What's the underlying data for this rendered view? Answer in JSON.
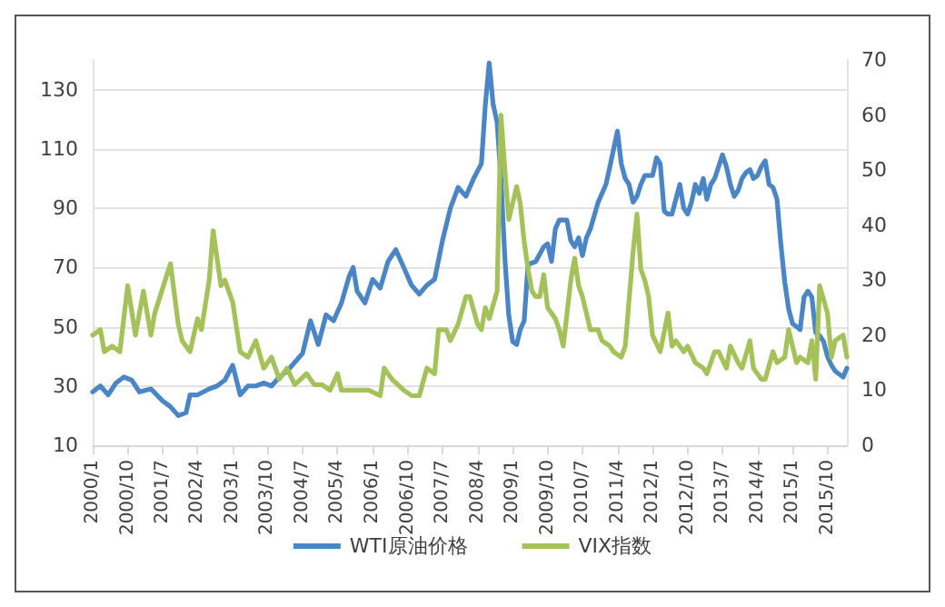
{
  "chart_data": {
    "type": "line",
    "xlim": [
      "2000-01",
      "2016-03"
    ],
    "xticks": [
      {
        "value": "2000-01",
        "label": "2000/1"
      },
      {
        "value": "2000-10",
        "label": "2000/10"
      },
      {
        "value": "2001-07",
        "label": "2001/7"
      },
      {
        "value": "2002-04",
        "label": "2002/4"
      },
      {
        "value": "2003-01",
        "label": "2003/1"
      },
      {
        "value": "2003-10",
        "label": "2003/10"
      },
      {
        "value": "2004-07",
        "label": "2004/7"
      },
      {
        "value": "2005-04",
        "label": "2005/4"
      },
      {
        "value": "2006-01",
        "label": "2006/1"
      },
      {
        "value": "2006-10",
        "label": "2006/10"
      },
      {
        "value": "2007-07",
        "label": "2007/7"
      },
      {
        "value": "2008-04",
        "label": "2008/4"
      },
      {
        "value": "2009-01",
        "label": "2009/1"
      },
      {
        "value": "2009-10",
        "label": "2009/10"
      },
      {
        "value": "2010-07",
        "label": "2010/7"
      },
      {
        "value": "2011-04",
        "label": "2011/4"
      },
      {
        "value": "2012-01",
        "label": "2012/1"
      },
      {
        "value": "2012-10",
        "label": "2012/10"
      },
      {
        "value": "2013-07",
        "label": "2013/7"
      },
      {
        "value": "2014-04",
        "label": "2014/4"
      },
      {
        "value": "2015-01",
        "label": "2015/1"
      },
      {
        "value": "2015-10",
        "label": "2015/10"
      }
    ],
    "ylim": [
      10,
      140
    ],
    "yticks": [
      10,
      30,
      50,
      70,
      90,
      110,
      130
    ],
    "y2lim": [
      0,
      70
    ],
    "y2ticks": [
      0,
      10,
      20,
      30,
      40,
      50,
      60,
      70
    ],
    "grid": "y",
    "legend": "bottom",
    "marker": "none",
    "line_style": "solid",
    "series": [
      {
        "name": "WTI原油价格",
        "color": "#4a86c5",
        "x": [
          "2000-01",
          "2000-03",
          "2000-05",
          "2000-07",
          "2000-09",
          "2000-11",
          "2001-01",
          "2001-04",
          "2001-07",
          "2001-09",
          "2001-11",
          "2002-01",
          "2002-02",
          "2002-04",
          "2002-07",
          "2002-09",
          "2002-11",
          "2003-01",
          "2003-03",
          "2003-05",
          "2003-07",
          "2003-09",
          "2003-11",
          "2004-01",
          "2004-03",
          "2004-05",
          "2004-07",
          "2004-09",
          "2004-11",
          "2005-01",
          "2005-03",
          "2005-05",
          "2005-07",
          "2005-08",
          "2005-09",
          "2005-11",
          "2006-01",
          "2006-03",
          "2006-05",
          "2006-07",
          "2006-09",
          "2006-11",
          "2007-01",
          "2007-03",
          "2007-05",
          "2007-07",
          "2007-09",
          "2007-11",
          "2008-01",
          "2008-03",
          "2008-05",
          "2008-06",
          "2008-07",
          "2008-08",
          "2008-09",
          "2008-10",
          "2008-11",
          "2008-12",
          "2009-01",
          "2009-02",
          "2009-03",
          "2009-04",
          "2009-05",
          "2009-07",
          "2009-09",
          "2009-10",
          "2009-11",
          "2009-12",
          "2010-01",
          "2010-03",
          "2010-04",
          "2010-05",
          "2010-06",
          "2010-07",
          "2010-08",
          "2010-09",
          "2010-11",
          "2011-01",
          "2011-02",
          "2011-04",
          "2011-05",
          "2011-06",
          "2011-07",
          "2011-08",
          "2011-09",
          "2011-10",
          "2011-11",
          "2012-01",
          "2012-02",
          "2012-03",
          "2012-04",
          "2012-05",
          "2012-06",
          "2012-07",
          "2012-08",
          "2012-09",
          "2012-10",
          "2012-11",
          "2012-12",
          "2013-01",
          "2013-02",
          "2013-03",
          "2013-04",
          "2013-05",
          "2013-06",
          "2013-07",
          "2013-08",
          "2013-09",
          "2013-10",
          "2013-11",
          "2013-12",
          "2014-01",
          "2014-02",
          "2014-03",
          "2014-04",
          "2014-05",
          "2014-06",
          "2014-07",
          "2014-08",
          "2014-09",
          "2014-10",
          "2014-11",
          "2014-12",
          "2015-01",
          "2015-02",
          "2015-03",
          "2015-04",
          "2015-05",
          "2015-06",
          "2015-07",
          "2015-08",
          "2015-09",
          "2015-10",
          "2015-11",
          "2015-12",
          "2016-01",
          "2016-02",
          "2016-03"
        ],
        "values": [
          28,
          30,
          27,
          31,
          33,
          32,
          28,
          29,
          25,
          23,
          20,
          21,
          27,
          27,
          29,
          30,
          32,
          37,
          27,
          30,
          30,
          31,
          30,
          33,
          35,
          38,
          41,
          52,
          44,
          54,
          52,
          58,
          67,
          70,
          62,
          58,
          66,
          63,
          72,
          76,
          70,
          64,
          61,
          64,
          66,
          79,
          90,
          97,
          94,
          100,
          105,
          125,
          139,
          125,
          119,
          100,
          73,
          54,
          45,
          44,
          49,
          52,
          71,
          72,
          77,
          78,
          72,
          83,
          86,
          86,
          79,
          77,
          80,
          74,
          80,
          83,
          92,
          98,
          104,
          116,
          105,
          100,
          98,
          92,
          94,
          98,
          101,
          101,
          107,
          105,
          89,
          88,
          88,
          93,
          98,
          90,
          88,
          92,
          98,
          95,
          100,
          93,
          98,
          100,
          104,
          108,
          104,
          98,
          94,
          96,
          100,
          102,
          103,
          100,
          101,
          104,
          106,
          98,
          97,
          93,
          78,
          65,
          56,
          51,
          50,
          49,
          60,
          62,
          60,
          48,
          47,
          45,
          40,
          37,
          35,
          34,
          33,
          36
        ]
      },
      {
        "name": "VIX指数",
        "color": "#a5c15a",
        "axis": "y2",
        "x": [
          "2000-01",
          "2000-03",
          "2000-04",
          "2000-06",
          "2000-08",
          "2000-10",
          "2000-12",
          "2001-02",
          "2001-04",
          "2001-05",
          "2001-09",
          "2001-11",
          "2001-12",
          "2002-02",
          "2002-04",
          "2002-05",
          "2002-07",
          "2002-08",
          "2002-10",
          "2002-11",
          "2003-01",
          "2003-03",
          "2003-05",
          "2003-07",
          "2003-09",
          "2003-11",
          "2004-01",
          "2004-03",
          "2004-05",
          "2004-08",
          "2004-10",
          "2004-12",
          "2005-02",
          "2005-04",
          "2005-05",
          "2005-08",
          "2005-10",
          "2005-12",
          "2006-03",
          "2006-04",
          "2006-06",
          "2006-09",
          "2006-11",
          "2007-01",
          "2007-03",
          "2007-05",
          "2007-06",
          "2007-08",
          "2007-09",
          "2007-11",
          "2008-01",
          "2008-02",
          "2008-04",
          "2008-05",
          "2008-06",
          "2008-07",
          "2008-09",
          "2008-10",
          "2008-11",
          "2008-12",
          "2009-01",
          "2009-02",
          "2009-03",
          "2009-04",
          "2009-05",
          "2009-06",
          "2009-07",
          "2009-08",
          "2009-09",
          "2009-10",
          "2009-12",
          "2010-01",
          "2010-02",
          "2010-04",
          "2010-05",
          "2010-06",
          "2010-07",
          "2010-08",
          "2010-09",
          "2010-11",
          "2010-12",
          "2011-02",
          "2011-03",
          "2011-05",
          "2011-06",
          "2011-08",
          "2011-09",
          "2011-10",
          "2011-11",
          "2011-12",
          "2012-01",
          "2012-03",
          "2012-05",
          "2012-06",
          "2012-07",
          "2012-09",
          "2012-10",
          "2012-12",
          "2013-02",
          "2013-03",
          "2013-05",
          "2013-06",
          "2013-08",
          "2013-09",
          "2013-11",
          "2013-12",
          "2014-02",
          "2014-03",
          "2014-05",
          "2014-06",
          "2014-08",
          "2014-09",
          "2014-11",
          "2014-12",
          "2015-02",
          "2015-03",
          "2015-05",
          "2015-06",
          "2015-07",
          "2015-08",
          "2015-10",
          "2015-11",
          "2015-12",
          "2016-02",
          "2016-03"
        ],
        "values": [
          20,
          21,
          17,
          18,
          17,
          29,
          20,
          28,
          20,
          24,
          33,
          22,
          19,
          17,
          23,
          21,
          30,
          39,
          29,
          30,
          26,
          17,
          16,
          19,
          14,
          16,
          12,
          14,
          11,
          13,
          11,
          11,
          10,
          13,
          10,
          10,
          10,
          10,
          9,
          14,
          12,
          10,
          9,
          9,
          14,
          13,
          21,
          21,
          19,
          22,
          27,
          27,
          22,
          21,
          25,
          23,
          28,
          60,
          50,
          41,
          44,
          47,
          44,
          37,
          32,
          28,
          27,
          27,
          31,
          25,
          23,
          21,
          18,
          30,
          34,
          29,
          27,
          24,
          21,
          21,
          19,
          18,
          17,
          16,
          18,
          35,
          42,
          32,
          30,
          27,
          20,
          17,
          24,
          18,
          19,
          17,
          18,
          15,
          14,
          13,
          17,
          17,
          14,
          18,
          15,
          14,
          19,
          14,
          12,
          12,
          17,
          15,
          16,
          21,
          15,
          16,
          15,
          19,
          12,
          29,
          24,
          16,
          19,
          20,
          16
        ]
      }
    ]
  }
}
